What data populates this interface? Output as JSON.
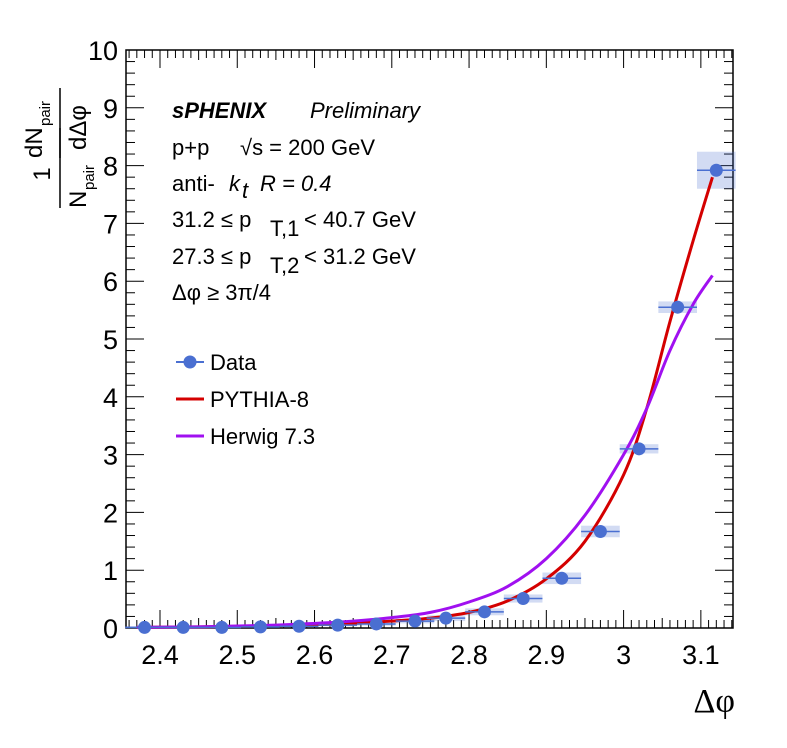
{
  "chart_data": {
    "type": "scatter",
    "xlabel": "Δφ",
    "ylabel": {
      "numerator_top": "1",
      "denominator_n": "N",
      "denominator_sub": "pair",
      "dn": "dN",
      "dn_sub": "pair",
      "dphi": "dΔφ"
    },
    "xlim": [
      2.356,
      3.1416
    ],
    "ylim": [
      0,
      10
    ],
    "x_ticks": [
      "2.4",
      "2.5",
      "2.6",
      "2.7",
      "2.8",
      "2.9",
      "3",
      "3.1"
    ],
    "y_ticks": [
      "0",
      "1",
      "2",
      "3",
      "4",
      "5",
      "6",
      "7",
      "8",
      "9",
      "10"
    ],
    "grid": false,
    "legend_position": "middle-left",
    "annotations": {
      "experiment": "sPHENIX",
      "status": "Preliminary",
      "system_prefix": "p+p",
      "sqrt": "√s = 200 GeV",
      "algo_prefix": "anti-",
      "algo_k": "k",
      "algo_sub": "t",
      "radius": "R = 0.4",
      "pt1_prefix": "31.2 ≤ p",
      "pt1_sub": "T,1",
      "pt1_suffix": " < 40.7 GeV",
      "pt2_prefix": "27.3 ≤ p",
      "pt2_sub": "T,2",
      "pt2_suffix": " < 31.2 GeV",
      "dphi_cut": "Δφ  ≥ 3π/4"
    },
    "series": [
      {
        "name": "Data",
        "color": "#4a6fd1",
        "kind": "points",
        "x": [
          2.38,
          2.43,
          2.48,
          2.53,
          2.58,
          2.63,
          2.68,
          2.73,
          2.77,
          2.82,
          2.87,
          2.92,
          2.97,
          3.02,
          3.07,
          3.12
        ],
        "y": [
          0.01,
          0.01,
          0.01,
          0.02,
          0.03,
          0.05,
          0.07,
          0.12,
          0.17,
          0.28,
          0.51,
          0.86,
          1.67,
          3.1,
          5.55,
          7.92
        ],
        "xerr": 0.025,
        "syst": [
          0.02,
          0.02,
          0.02,
          0.02,
          0.02,
          0.02,
          0.03,
          0.04,
          0.05,
          0.06,
          0.07,
          0.1,
          0.1,
          0.08,
          0.1,
          0.32
        ]
      },
      {
        "name": "PYTHIA-8",
        "color": "#d40000",
        "kind": "line",
        "x": [
          2.37,
          2.45,
          2.55,
          2.6,
          2.65,
          2.7,
          2.75,
          2.8,
          2.85,
          2.9,
          2.95,
          3.0,
          3.03,
          3.06,
          3.09,
          3.115
        ],
        "y": [
          0.01,
          0.02,
          0.04,
          0.06,
          0.08,
          0.12,
          0.17,
          0.27,
          0.47,
          0.85,
          1.5,
          2.65,
          3.8,
          5.3,
          6.7,
          7.8
        ]
      },
      {
        "name": "Herwig 7.3",
        "color": "#a010f0",
        "kind": "line",
        "x": [
          2.37,
          2.45,
          2.55,
          2.6,
          2.65,
          2.7,
          2.75,
          2.8,
          2.85,
          2.9,
          2.95,
          3.0,
          3.03,
          3.06,
          3.09,
          3.115
        ],
        "y": [
          0.01,
          0.02,
          0.05,
          0.08,
          0.12,
          0.18,
          0.27,
          0.45,
          0.72,
          1.2,
          1.95,
          3.0,
          3.8,
          4.8,
          5.6,
          6.1
        ]
      }
    ]
  }
}
